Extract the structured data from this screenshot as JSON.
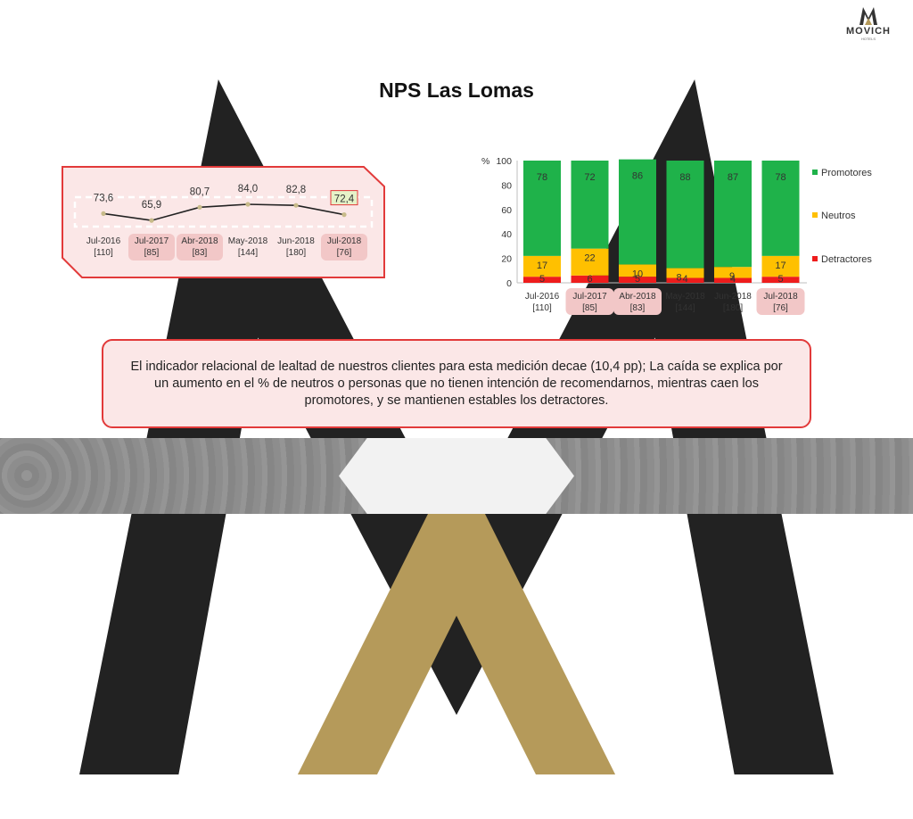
{
  "brand": {
    "name": "MOVICH",
    "sub": "HOTELS"
  },
  "title": "NPS Las Lomas",
  "chart_data": [
    {
      "type": "line",
      "categories": [
        "Jul-2016",
        "Jul-2017",
        "Abr-2018",
        "May-2018",
        "Jun-2018",
        "Jul-2018"
      ],
      "sample_sizes": [
        "[110]",
        "[85]",
        "[83]",
        "[144]",
        "[180]",
        "[76]"
      ],
      "values": [
        73.6,
        65.9,
        80.7,
        84.0,
        82.8,
        72.4
      ],
      "value_labels": [
        "73,6",
        "65,9",
        "80,7",
        "84,0",
        "82,8",
        "72,4"
      ],
      "highlighted_categories": [
        "Jul-2017",
        "Abr-2018",
        "Jul-2018"
      ],
      "highlighted_value": "72,4",
      "colors": {
        "line": "#222222",
        "marker": "#c8bb8a",
        "panel_border": "#e23a3a",
        "panel_fill": "#fbe7e7",
        "highlight": "#f2c7c7",
        "value_box": "#e6f2c8"
      }
    },
    {
      "type": "bar",
      "stacked": true,
      "ylabel": "%",
      "ylim": [
        0,
        100
      ],
      "yticks": [
        0,
        20,
        40,
        60,
        80,
        100
      ],
      "categories": [
        "Jul-2016",
        "Jul-2017",
        "Abr-2018",
        "May-2018",
        "Jun-2018",
        "Jul-2018"
      ],
      "sample_sizes": [
        "[110]",
        "[85]",
        "[83]",
        "[144]",
        "[180]",
        "[76]"
      ],
      "highlighted_categories": [
        "Jul-2017",
        "Abr-2018",
        "Jul-2018"
      ],
      "series": [
        {
          "name": "Detractores",
          "values": [
            5,
            6,
            5,
            4,
            4,
            5
          ],
          "color": "#ee1c1c"
        },
        {
          "name": "Neutros",
          "values": [
            17,
            22,
            10,
            8,
            9,
            17
          ],
          "color": "#ffc000"
        },
        {
          "name": "Promotores",
          "values": [
            78,
            72,
            86,
            88,
            87,
            78
          ],
          "color": "#1fb24a"
        }
      ],
      "legend_order": [
        "Promotores",
        "Neutros",
        "Detractores"
      ],
      "legend_position": "right"
    }
  ],
  "note": "El indicador relacional de lealtad de nuestros clientes para esta medición decae (10,4 pp); La caída se explica por un aumento en el % de neutros o personas que no tienen intención de recomendarnos, mientras caen los promotores, y se mantienen estables los detractores."
}
